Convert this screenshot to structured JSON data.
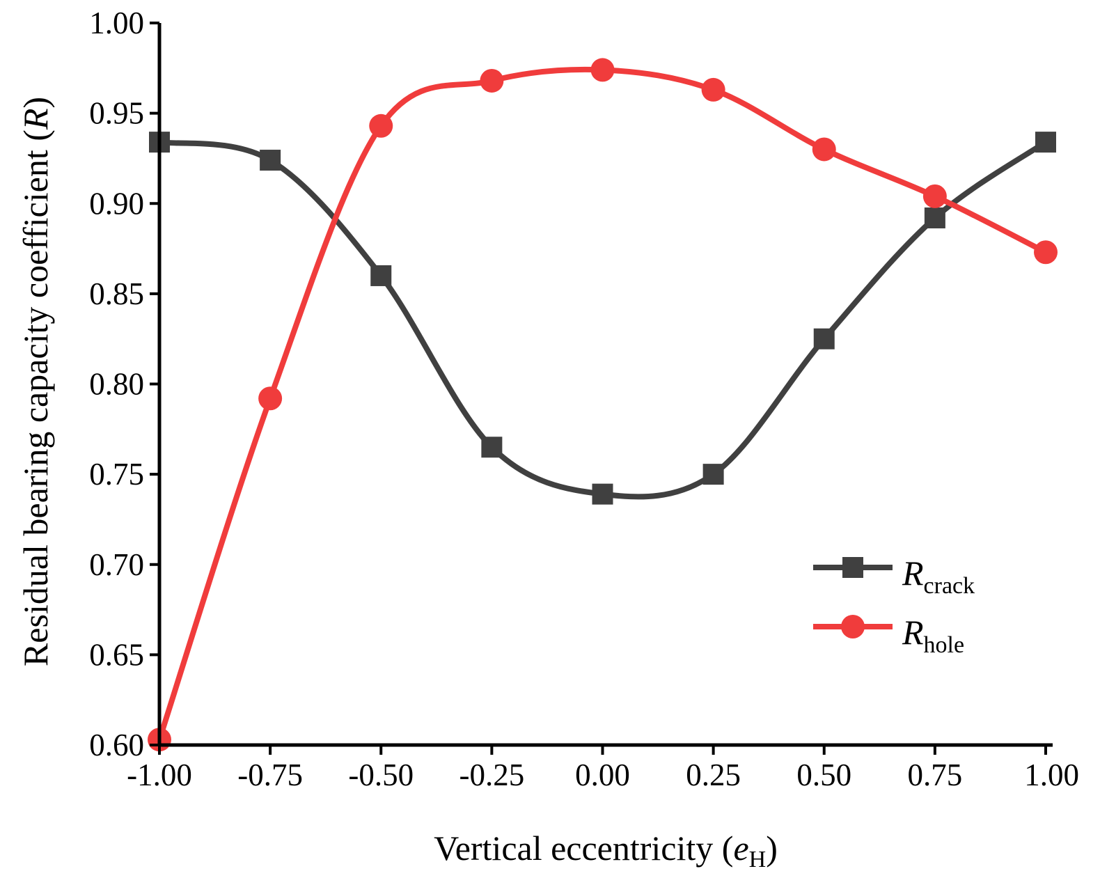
{
  "chart_data": {
    "type": "line",
    "smooth": true,
    "xlabel": {
      "main": "Vertical eccentricity (",
      "var": "e",
      "sub": "H",
      "close": ")"
    },
    "ylabel": {
      "main": "Residual bearing capacity coefficient (",
      "var": "R",
      "close": ")"
    },
    "xlim": [
      -1.0,
      1.0
    ],
    "ylim": [
      0.6,
      1.0
    ],
    "x_ticks": [
      -1.0,
      -0.75,
      -0.5,
      -0.25,
      0.0,
      0.25,
      0.5,
      0.75,
      1.0
    ],
    "x_tick_labels": [
      "-1.00",
      "-0.75",
      "-0.50",
      "-0.25",
      "0.00",
      "0.25",
      "0.50",
      "0.75",
      "1.00"
    ],
    "y_ticks": [
      0.6,
      0.65,
      0.7,
      0.75,
      0.8,
      0.85,
      0.9,
      0.95,
      1.0
    ],
    "y_tick_labels": [
      "0.60",
      "0.65",
      "0.70",
      "0.75",
      "0.80",
      "0.85",
      "0.90",
      "0.95",
      "1.00"
    ],
    "x": [
      -1.0,
      -0.75,
      -0.5,
      -0.25,
      0.0,
      0.25,
      0.5,
      0.75,
      1.0
    ],
    "series": [
      {
        "name": "R_crack",
        "label_main": "R",
        "label_sub": "crack",
        "marker": "square",
        "color": "#404040",
        "values": [
          0.934,
          0.924,
          0.86,
          0.765,
          0.739,
          0.75,
          0.825,
          0.892,
          0.934
        ]
      },
      {
        "name": "R_hole",
        "label_main": "R",
        "label_sub": "hole",
        "marker": "circle",
        "color": "#f03c3c",
        "values": [
          0.603,
          0.792,
          0.943,
          0.968,
          0.974,
          0.963,
          0.93,
          0.904,
          0.873
        ]
      }
    ],
    "legend_position": "center-right"
  }
}
